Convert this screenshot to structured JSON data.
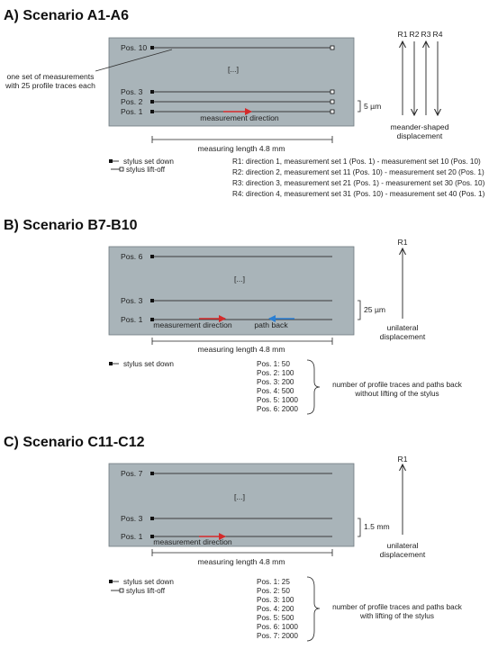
{
  "colors": {
    "plate": "#a9b4b9",
    "plate_border": "#6f7a80",
    "trace": "#3a3a3a",
    "measurement_arrow": "#d42a2a",
    "path_back_arrow": "#2a7fd4"
  },
  "legend": {
    "stylus_down": "stylus set down",
    "stylus_liftoff": "stylus lift-off"
  },
  "common": {
    "ellipsis": "[...]",
    "measurement_direction": "measurement direction",
    "measuring_length": "measuring length 4.8 mm",
    "unilateral": [
      "unilateral",
      "displacement"
    ],
    "r1": "R1"
  },
  "scenario_a": {
    "title": "A) Scenario A1-A6",
    "positions": [
      "Pos. 10",
      "Pos. 3",
      "Pos. 2",
      "Pos. 1"
    ],
    "annotation": [
      "one set of measurements",
      "with 25 profile traces each"
    ],
    "spacing": "5 µm",
    "directions": [
      "R1",
      "R2",
      "R3",
      "R4"
    ],
    "displacement": [
      "meander-shaped",
      "displacement"
    ],
    "sets": [
      "R1: direction 1, measurement set 1 (Pos. 1)  -  measurement set 10 (Pos. 10)",
      "R2: direction 2, measurement set 11 (Pos. 10)  -  measurement set 20 (Pos. 1)",
      "R3: direction 3, measurement set 21 (Pos. 1)  -  measurement set 30 (Pos. 10)",
      "R4: direction 4, measurement set 31 (Pos. 10)  -  measurement set 40 (Pos. 1)"
    ]
  },
  "scenario_b": {
    "title": "B) Scenario B7-B10",
    "positions": [
      "Pos. 6",
      "Pos. 3",
      "Pos. 1"
    ],
    "spacing": "25 µm",
    "path_back": "path back",
    "counts": [
      "Pos. 1: 50",
      "Pos. 2: 100",
      "Pos. 3: 200",
      "Pos. 4: 500",
      "Pos. 5: 1000",
      "Pos. 6: 2000"
    ],
    "counts_note": [
      "number of profile traces and paths back",
      "without lifting of the stylus"
    ]
  },
  "scenario_c": {
    "title": "C) Scenario C11-C12",
    "positions": [
      "Pos. 7",
      "Pos. 3",
      "Pos. 1"
    ],
    "spacing": "1.5 mm",
    "counts": [
      "Pos. 1: 25",
      "Pos. 2: 50",
      "Pos. 3: 100",
      "Pos. 4: 200",
      "Pos. 5: 500",
      "Pos. 6: 1000",
      "Pos. 7: 2000"
    ],
    "counts_note": [
      "number of profile traces and paths back",
      "with lifting of the stylus"
    ]
  }
}
